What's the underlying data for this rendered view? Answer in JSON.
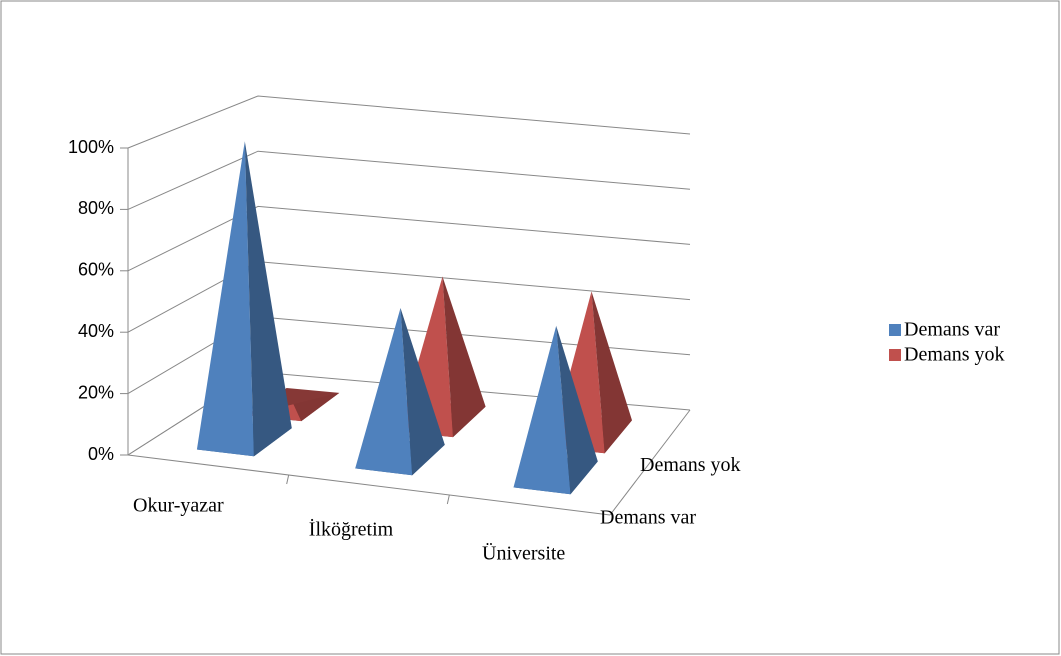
{
  "chart_data": {
    "type": "pyramid3d",
    "categories": [
      "Okur-yazar",
      "İlköğretim",
      "Üniversite"
    ],
    "series": [
      {
        "name": "Demans var",
        "color": "#4f81bd",
        "values": [
          100,
          50,
          50
        ]
      },
      {
        "name": "Demans yok",
        "color": "#c0504d",
        "values": [
          0,
          50,
          50
        ]
      }
    ],
    "ylim": [
      0,
      100
    ],
    "yticks": [
      {
        "value": 0,
        "label": "0%"
      },
      {
        "value": 20,
        "label": "20%"
      },
      {
        "value": 40,
        "label": "40%"
      },
      {
        "value": 60,
        "label": "60%"
      },
      {
        "value": 80,
        "label": "80%"
      },
      {
        "value": 100,
        "label": "100%"
      }
    ],
    "grid": true,
    "legend": "right"
  }
}
